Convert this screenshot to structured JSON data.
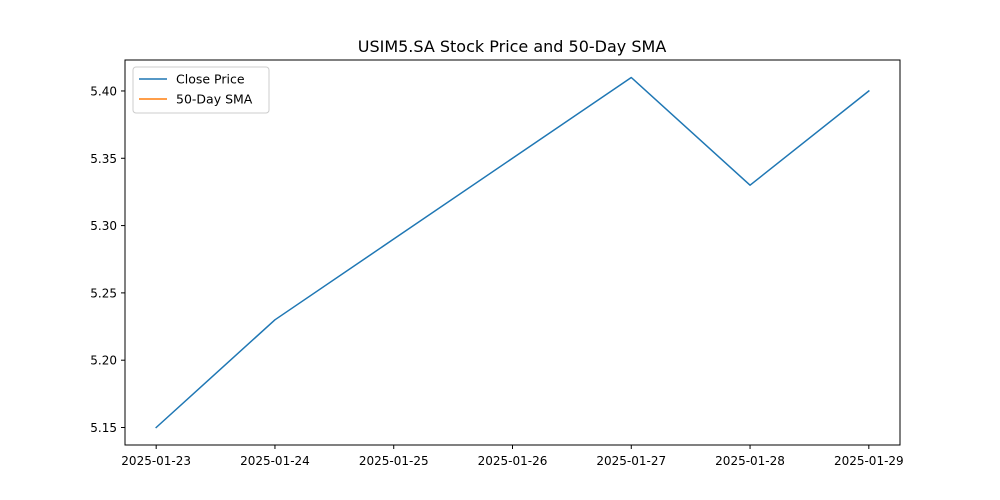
{
  "chart_data": {
    "type": "line",
    "title": "USIM5.SA Stock Price and 50-Day SMA",
    "xlabel": "",
    "ylabel": "",
    "x": [
      "2025-01-23",
      "2025-01-24",
      "2025-01-25",
      "2025-01-26",
      "2025-01-27",
      "2025-01-28",
      "2025-01-29"
    ],
    "xlim": [
      "2025-01-22 17:42",
      "2025-01-29 06:18"
    ],
    "ylim": [
      5.137,
      5.423
    ],
    "y_ticks": [
      "5.15",
      "5.20",
      "5.25",
      "5.30",
      "5.35",
      "5.40"
    ],
    "y_tick_values": [
      5.15,
      5.2,
      5.25,
      5.3,
      5.35,
      5.4
    ],
    "grid": false,
    "legend": "top-left",
    "series": [
      {
        "name": "Close Price",
        "color": "#1f77b4",
        "values": [
          5.15,
          5.23,
          5.29,
          5.35,
          5.41,
          5.33,
          5.4
        ]
      },
      {
        "name": "50-Day SMA",
        "color": "#ff7f0e",
        "values": [
          null,
          null,
          null,
          null,
          null,
          null,
          null
        ]
      }
    ]
  }
}
